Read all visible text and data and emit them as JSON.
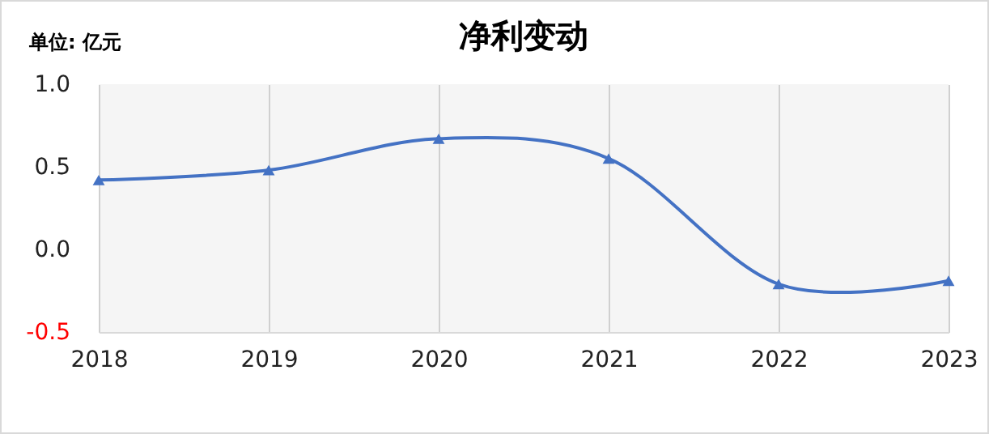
{
  "chart_data": {
    "type": "line",
    "title": "净利变动",
    "annotations": [
      "单位: 亿元"
    ],
    "categories": [
      "2018",
      "2019",
      "2020",
      "2021",
      "2022",
      "2023"
    ],
    "series": [
      {
        "color": "#4472c4",
        "values": [
          0.42,
          0.48,
          0.67,
          0.55,
          -0.21,
          -0.19
        ]
      }
    ],
    "ylim": [
      -0.5,
      1.0
    ],
    "yticks": [
      {
        "value": -0.5,
        "label": "-0.5"
      },
      {
        "value": 0,
        "label": "0.0"
      },
      {
        "value": 0.5,
        "label": "0.5"
      },
      {
        "value": 1.0,
        "label": "1.0"
      }
    ],
    "grid": "x",
    "marker": "triangle",
    "line_style": "solid"
  }
}
